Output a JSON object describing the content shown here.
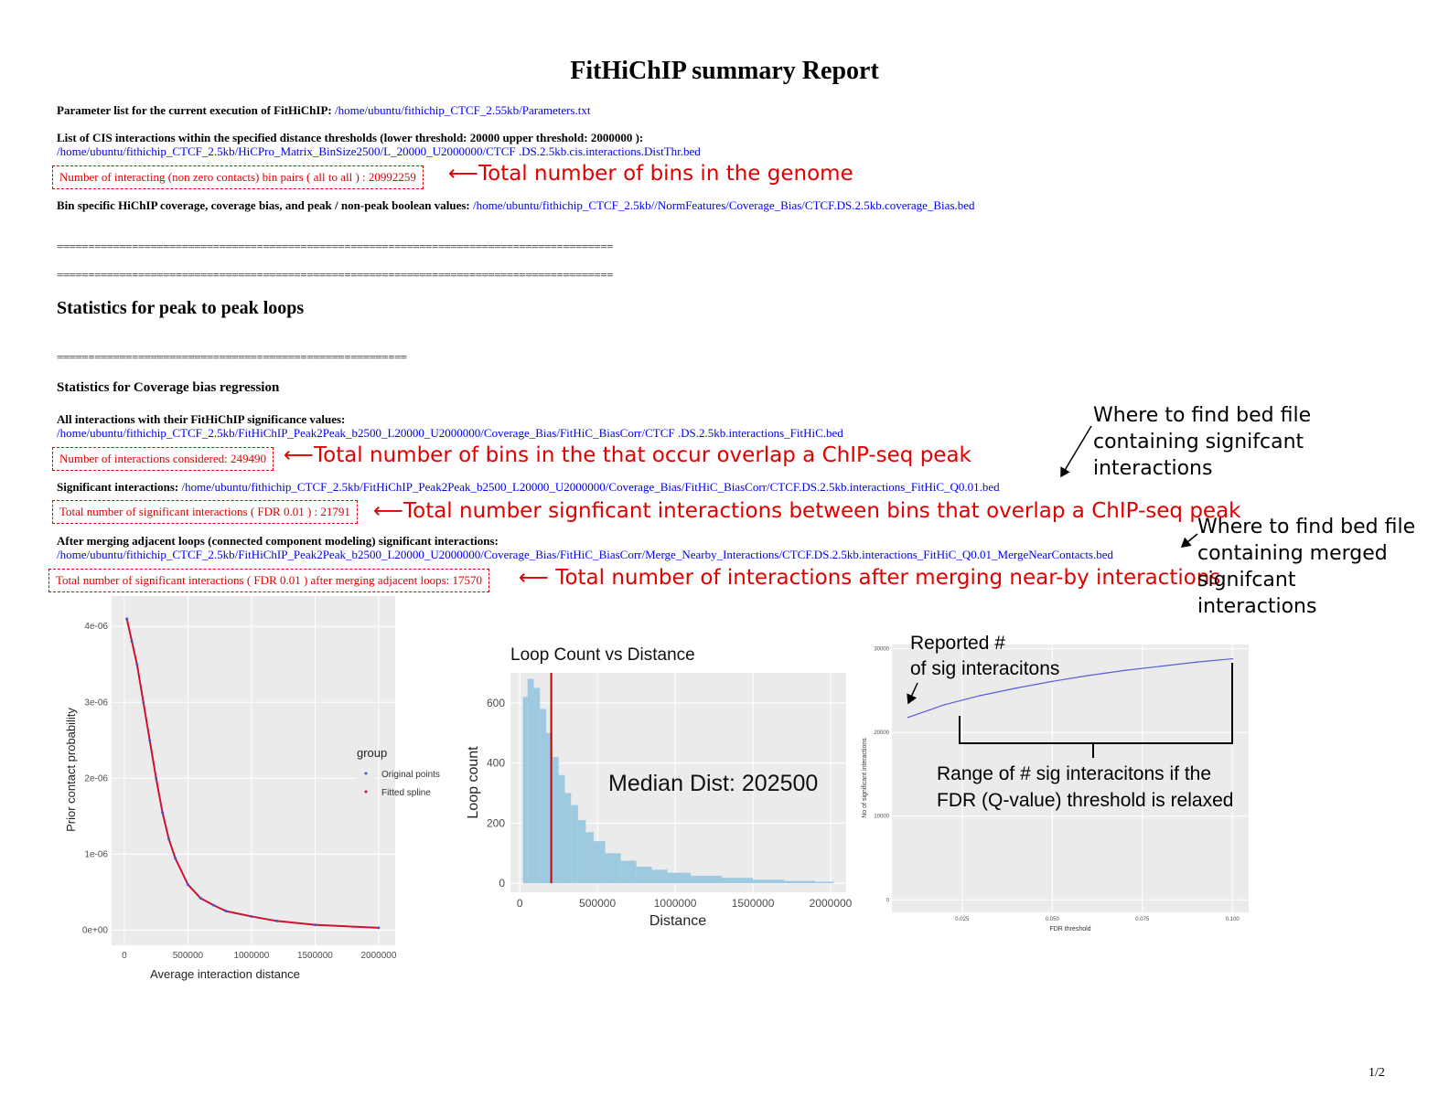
{
  "title": "FitHiChIP summary Report",
  "params": {
    "label": "Parameter list for the current execution of FitHiChIP:",
    "link": "/home/ubuntu/fithichip_CTCF_2.55kb/Parameters.txt"
  },
  "cis": {
    "label": "List of CIS interactions within the specified distance thresholds (lower threshold: 20000 upper threshold: 2000000 ):",
    "link": "/home/ubuntu/fithichip_CTCF_2.5kb/HiCPro_Matrix_BinSize2500/L_20000_U2000000/CTCF .DS.2.5kb.cis.interactions.DistThr.bed"
  },
  "bin_pairs": {
    "text": "Number of interacting (non zero contacts) bin pairs ( all to all ) : 20992259",
    "annotation": "Total number of bins in the genome"
  },
  "coverage": {
    "label": "Bin specific HiChIP coverage, coverage bias, and peak / non-peak boolean values:",
    "link": "/home/ubuntu/fithichip_CTCF_2.5kb//NormFeatures/Coverage_Bias/CTCF.DS.2.5kb.coverage_Bias.bed"
  },
  "separator_long": "=========================================================================================",
  "separator_mid": "=========================================================================================",
  "section_peak": "Statistics for peak to peak loops",
  "separator_short": "========================================================",
  "section_cov": "Statistics for Coverage bias regression",
  "all_interactions": {
    "label": "All interactions with their FitHiChIP significance values:",
    "link": "/home/ubuntu/fithichip_CTCF_2.5kb/FitHiChIP_Peak2Peak_b2500_L20000_U2000000/Coverage_Bias/FitHiC_BiasCorr/CTCF .DS.2.5kb.interactions_FitHiC.bed"
  },
  "considered": {
    "text": "Number of interactions considered: 249490",
    "annotation": "Total number of bins in the that occur overlap a ChIP-seq peak"
  },
  "significant": {
    "label": "Significant interactions:",
    "link": "/home/ubuntu/fithichip_CTCF_2.5kb/FitHiChIP_Peak2Peak_b2500_L20000_U2000000/Coverage_Bias/FitHiC_BiasCorr/CTCF.DS.2.5kb.interactions_FitHiC_Q0.01.bed"
  },
  "sig_total": {
    "text": "Total number of significant interactions ( FDR 0.01 ) : 21791",
    "annotation": "Total number signficant interactions between bins that overlap a ChIP-seq peak"
  },
  "merged": {
    "label": "After merging adjacent loops (connected component modeling) significant interactions:",
    "link": "/home/ubuntu/fithichip_CTCF_2.5kb/FitHiChIP_Peak2Peak_b2500_L20000_U2000000/Coverage_Bias/FitHiC_BiasCorr/Merge_Nearby_Interactions/CTCF.DS.2.5kb.interactions_FitHiC_Q0.01_MergeNearContacts.bed"
  },
  "merged_total": {
    "text": "Total number of significant interactions ( FDR 0.01 ) after merging adjacent loops: 17570",
    "annotation": "Total number of interactions after merging near-by interactions"
  },
  "side_notes": {
    "sig_bed": "Where to find bed file containing signifcant interactions",
    "merged_bed": "Where to find bed file containing merged signifcant interactions"
  },
  "page_number": "1/2",
  "colors": {
    "link": "#0000ee",
    "annotation": "#e00000",
    "hist": "#9ecae1",
    "median": "#cc0000",
    "spline": "#cc1133",
    "fdr_line": "#5b5bdc"
  },
  "chart_data": [
    {
      "type": "line",
      "title": "",
      "xlabel": "Average interaction distance",
      "ylabel": "Prior contact probability",
      "xlim": [
        0,
        2000000
      ],
      "ylim": [
        0,
        4.2e-06
      ],
      "xticks": [
        "0",
        "500000",
        "1000000",
        "1500000",
        "2000000"
      ],
      "yticks": [
        "0e+00",
        "1e-06",
        "2e-06",
        "3e-06",
        "4e-06"
      ],
      "legend": {
        "title": "group",
        "entries": [
          "Original points",
          "Fitted spline"
        ],
        "placement": "right"
      },
      "x": [
        20000,
        60000,
        100000,
        150000,
        200000,
        250000,
        300000,
        350000,
        400000,
        500000,
        600000,
        700000,
        800000,
        1000000,
        1200000,
        1500000,
        2000000
      ],
      "values": [
        4.1e-06,
        3.8e-06,
        3.5e-06,
        3e-06,
        2.5e-06,
        2e-06,
        1.55e-06,
        1.2e-06,
        9.5e-07,
        6e-07,
        4.2e-07,
        3.3e-07,
        2.5e-07,
        1.8e-07,
        1.2e-07,
        7e-08,
        3e-08
      ]
    },
    {
      "type": "bar",
      "title": "Loop Count vs Distance",
      "xlabel": "Distance",
      "ylabel": "Loop count",
      "xlim": [
        0,
        2000000
      ],
      "ylim": [
        0,
        700
      ],
      "xticks": [
        "0",
        "500000",
        "1000000",
        "1500000",
        "2000000"
      ],
      "yticks": [
        "0",
        "200",
        "400",
        "600"
      ],
      "annotation": "Median Dist: 202500",
      "median": 202500,
      "x": [
        30000,
        70000,
        110000,
        150000,
        190000,
        230000,
        270000,
        310000,
        350000,
        400000,
        450000,
        500000,
        600000,
        700000,
        800000,
        900000,
        1000000,
        1200000,
        1400000,
        1600000,
        1800000,
        2000000
      ],
      "values": [
        620,
        680,
        650,
        580,
        500,
        420,
        360,
        300,
        260,
        210,
        170,
        140,
        100,
        75,
        55,
        45,
        35,
        25,
        18,
        12,
        8,
        5
      ]
    },
    {
      "type": "line",
      "title": "",
      "xlabel": "FDR threshold",
      "ylabel": "No of significant interactions",
      "xlim": [
        0.005,
        0.105
      ],
      "ylim": [
        0,
        30000
      ],
      "xticks": [
        "0.025",
        "0.050",
        "0.075",
        "0.100"
      ],
      "yticks": [
        "0",
        "10000",
        "20000",
        "30000"
      ],
      "x": [
        0.01,
        0.02,
        0.03,
        0.04,
        0.05,
        0.06,
        0.07,
        0.08,
        0.09,
        0.1
      ],
      "values": [
        21791,
        23300,
        24400,
        25300,
        26100,
        26800,
        27400,
        27900,
        28400,
        28800
      ]
    }
  ],
  "chart_notes": {
    "reported_line1": "Reported #",
    "reported_line2": "of sig interacitons",
    "range_line1": "Range of # sig interacitons if the",
    "range_line2": "FDR (Q-value) threshold is relaxed"
  }
}
